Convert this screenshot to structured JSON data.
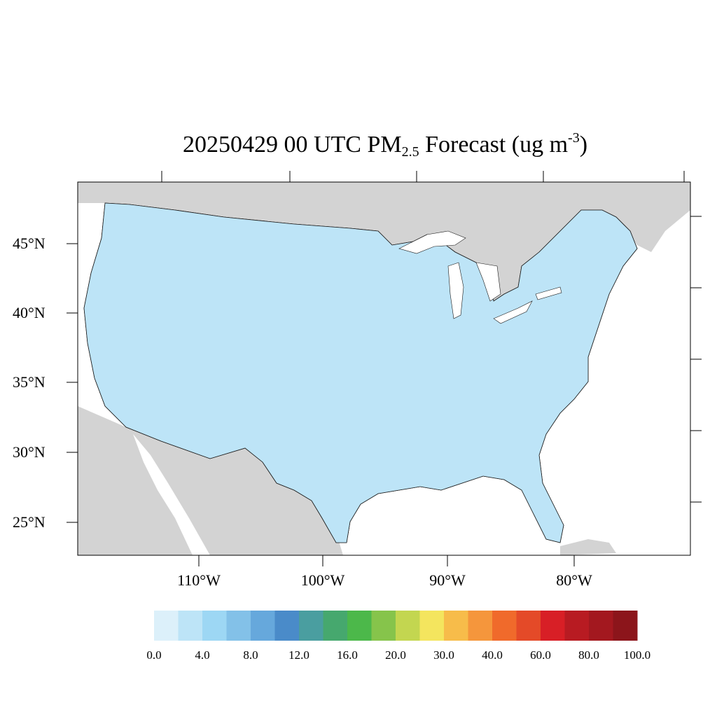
{
  "title": {
    "date_time": "20250429 00 UTC PM",
    "subscript": "2.5",
    "forecast": " Forecast (ug m",
    "superscript": "-3",
    "close": ")"
  },
  "axes": {
    "lat_labels": [
      "45°N",
      "40°N",
      "35°N",
      "30°N",
      "25°N"
    ],
    "lon_labels": [
      "110°W",
      "100°W",
      "90°W",
      "80°W"
    ]
  },
  "colorbar": {
    "colors": [
      "#dcf0fa",
      "#bde4f7",
      "#9dd7f4",
      "#83c1e8",
      "#66a8dc",
      "#4a8bc9",
      "#4a9ea0",
      "#46a86e",
      "#4cb84a",
      "#86c44b",
      "#c3d650",
      "#f4e55e",
      "#f7bc4a",
      "#f5963c",
      "#f06a2b",
      "#e44a28",
      "#d81f26",
      "#b81b22",
      "#a3181f",
      "#8c151b"
    ],
    "labels": [
      "0.0",
      "4.0",
      "8.0",
      "12.0",
      "16.0",
      "20.0",
      "30.0",
      "40.0",
      "60.0",
      "80.0",
      "100.0"
    ]
  },
  "map_colors": {
    "land_outside": "#d3d3d3",
    "water": "#ffffff"
  }
}
